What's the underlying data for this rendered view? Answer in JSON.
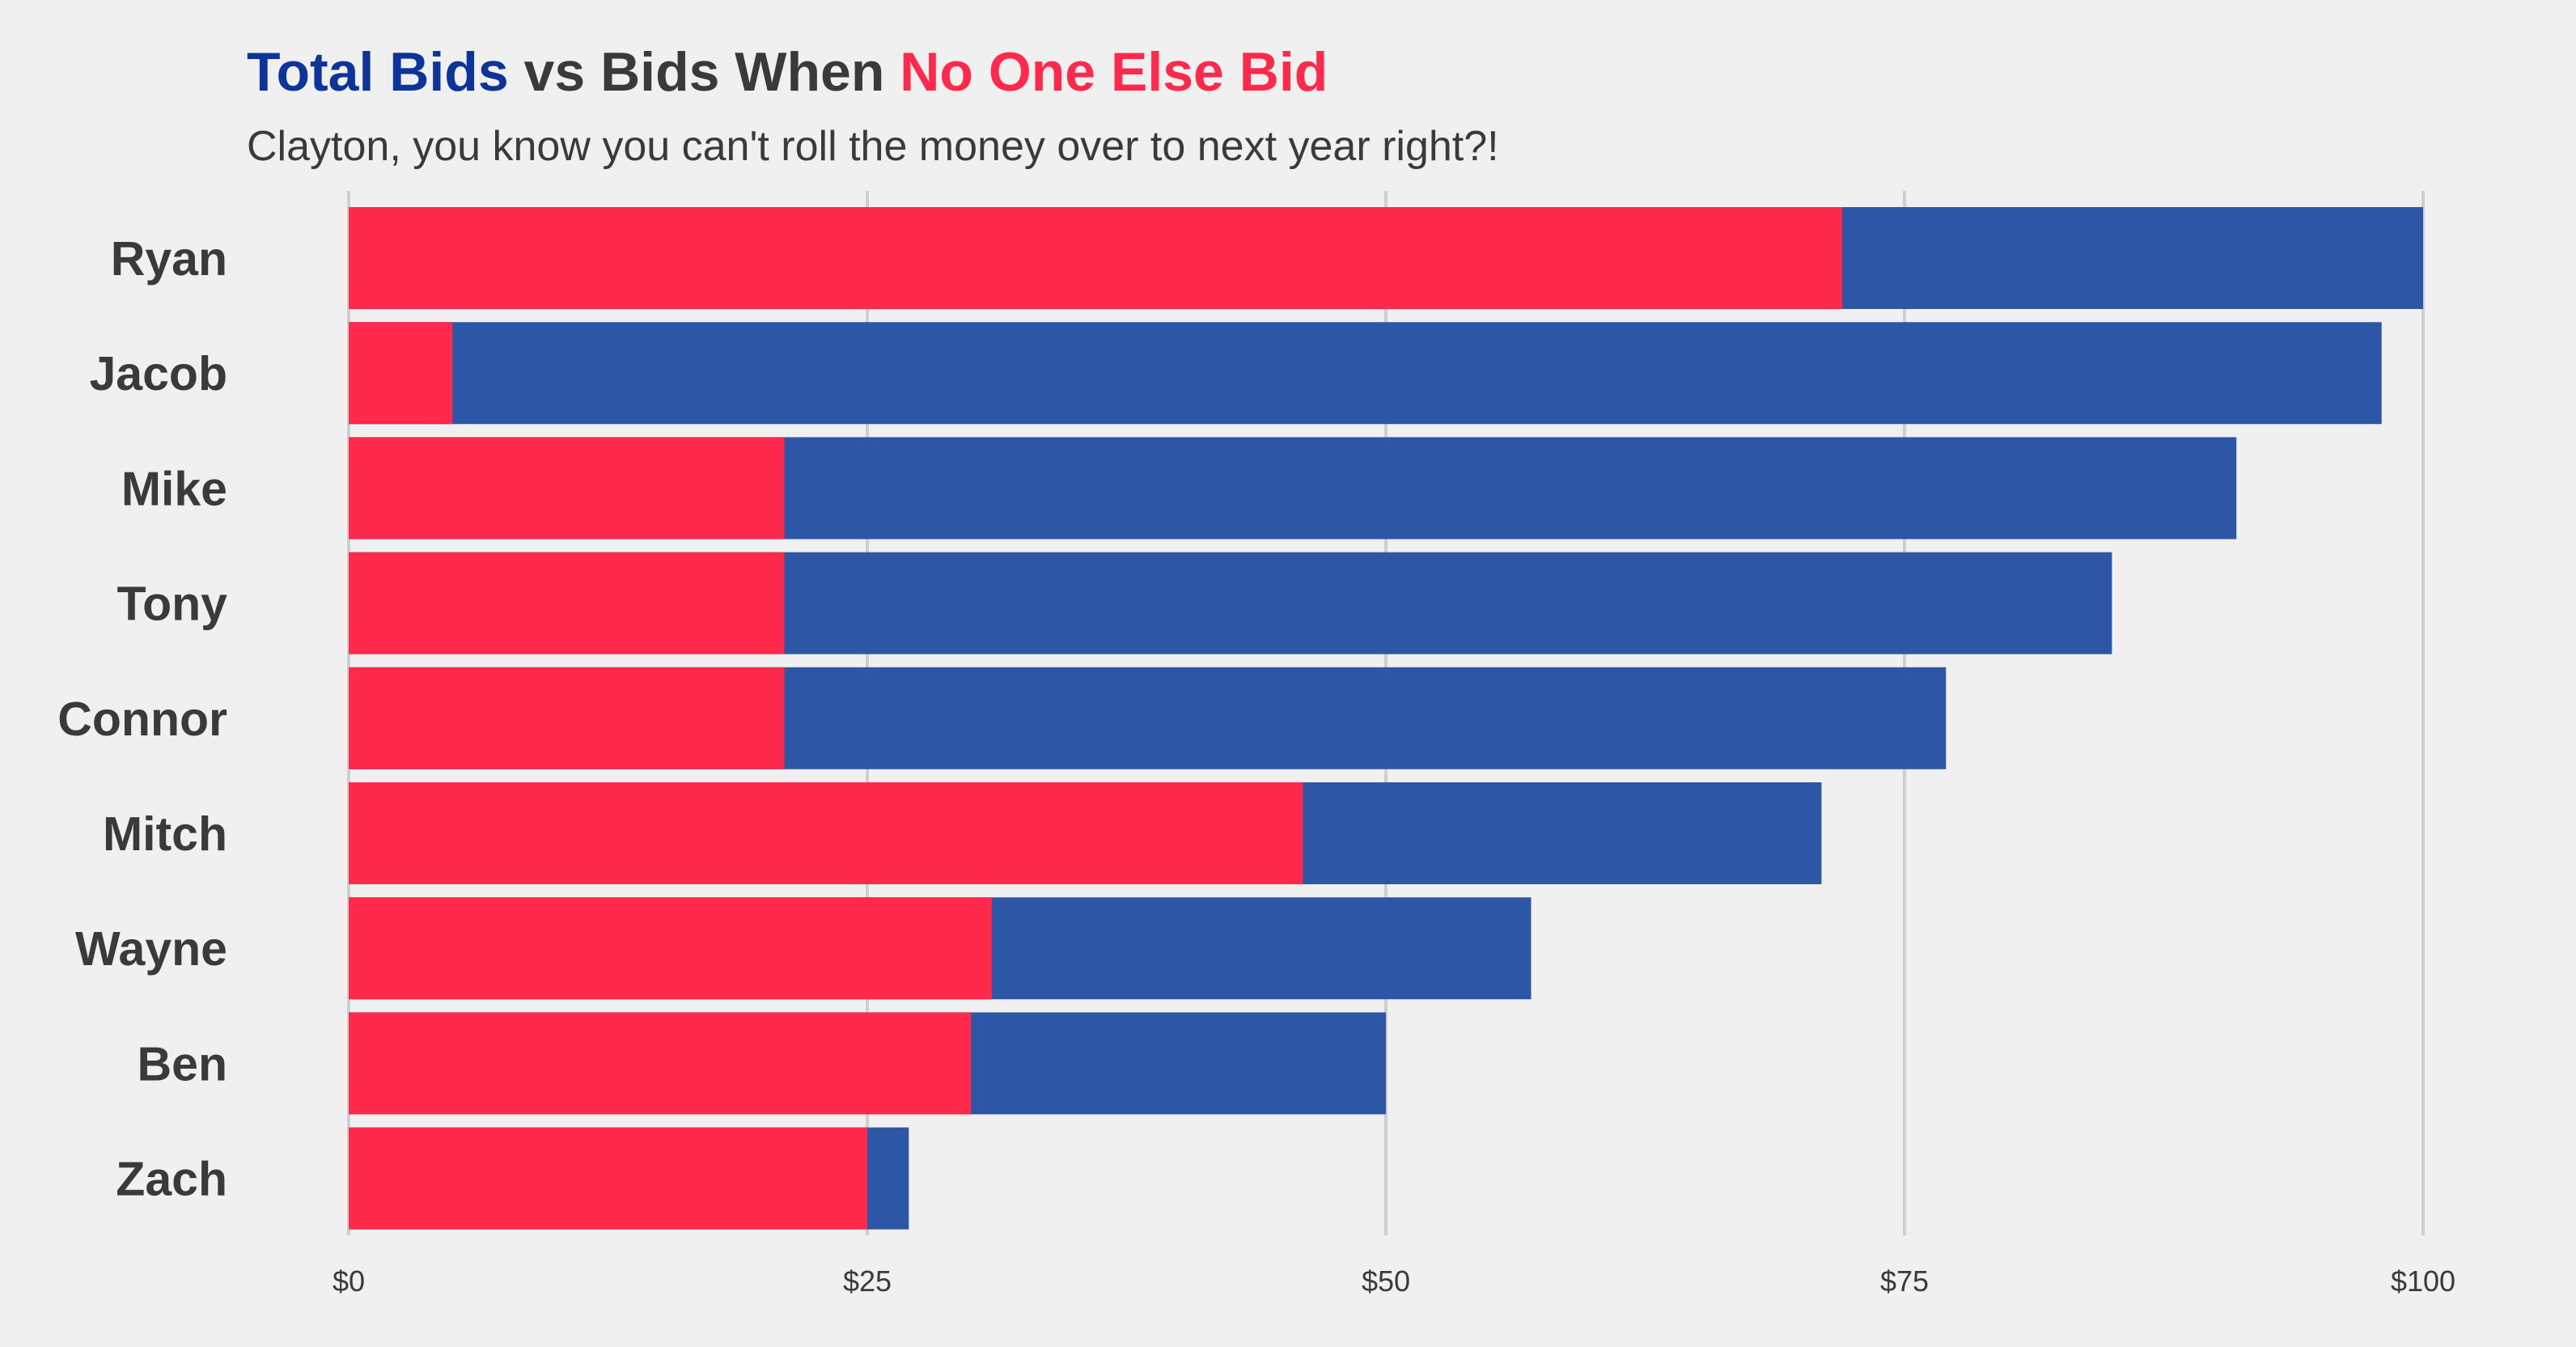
{
  "title": {
    "part1": "Total Bids",
    "part2": " vs Bids When ",
    "part3": "No One Else Bid"
  },
  "subtitle": "Clayton, you know you can't roll the money over to next year right?!",
  "colors": {
    "total": "#2d57a6",
    "total_title": "#0d3599",
    "no_one_else": "#ff2a4b",
    "text": "#3a3a3a"
  },
  "chart_data": {
    "type": "bar",
    "orientation": "horizontal",
    "layout": "overlapping",
    "categories": [
      "Ryan",
      "Jacob",
      "Mike",
      "Tony",
      "Connor",
      "Mitch",
      "Wayne",
      "Ben",
      "Zach"
    ],
    "series": [
      {
        "name": "Total Bids",
        "values": [
          100,
          98,
          91,
          85,
          77,
          71,
          57,
          50,
          27
        ]
      },
      {
        "name": "No One Else Bid",
        "values": [
          72,
          5,
          21,
          21,
          21,
          46,
          31,
          30,
          25
        ]
      }
    ],
    "xlim": [
      0,
      100
    ],
    "xticks": [
      0,
      25,
      50,
      75,
      100
    ],
    "xtick_labels": [
      "$0",
      "$25",
      "$50",
      "$75",
      "$100"
    ],
    "grid": "vertical",
    "legend": "none"
  }
}
